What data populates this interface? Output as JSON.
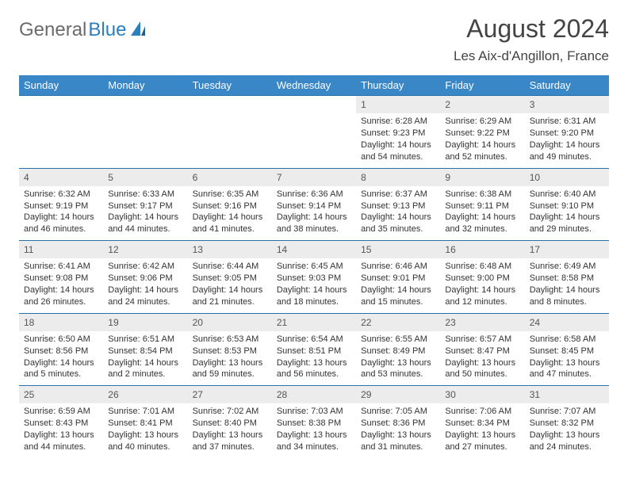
{
  "brand": {
    "part1": "General",
    "part2": "Blue"
  },
  "title": "August 2024",
  "location": "Les Aix-d'Angillon, France",
  "colors": {
    "header_bg": "#3a87c8",
    "header_text": "#ffffff",
    "daynum_bg": "#ececec",
    "rule": "#2a6fa8",
    "brand_gray": "#6b6b6b",
    "brand_blue": "#2a7fbf"
  },
  "weekdays": [
    "Sunday",
    "Monday",
    "Tuesday",
    "Wednesday",
    "Thursday",
    "Friday",
    "Saturday"
  ],
  "weeks": [
    [
      {
        "n": "",
        "lines": []
      },
      {
        "n": "",
        "lines": []
      },
      {
        "n": "",
        "lines": []
      },
      {
        "n": "",
        "lines": []
      },
      {
        "n": "1",
        "lines": [
          "Sunrise: 6:28 AM",
          "Sunset: 9:23 PM",
          "Daylight: 14 hours and 54 minutes."
        ]
      },
      {
        "n": "2",
        "lines": [
          "Sunrise: 6:29 AM",
          "Sunset: 9:22 PM",
          "Daylight: 14 hours and 52 minutes."
        ]
      },
      {
        "n": "3",
        "lines": [
          "Sunrise: 6:31 AM",
          "Sunset: 9:20 PM",
          "Daylight: 14 hours and 49 minutes."
        ]
      }
    ],
    [
      {
        "n": "4",
        "lines": [
          "Sunrise: 6:32 AM",
          "Sunset: 9:19 PM",
          "Daylight: 14 hours and 46 minutes."
        ]
      },
      {
        "n": "5",
        "lines": [
          "Sunrise: 6:33 AM",
          "Sunset: 9:17 PM",
          "Daylight: 14 hours and 44 minutes."
        ]
      },
      {
        "n": "6",
        "lines": [
          "Sunrise: 6:35 AM",
          "Sunset: 9:16 PM",
          "Daylight: 14 hours and 41 minutes."
        ]
      },
      {
        "n": "7",
        "lines": [
          "Sunrise: 6:36 AM",
          "Sunset: 9:14 PM",
          "Daylight: 14 hours and 38 minutes."
        ]
      },
      {
        "n": "8",
        "lines": [
          "Sunrise: 6:37 AM",
          "Sunset: 9:13 PM",
          "Daylight: 14 hours and 35 minutes."
        ]
      },
      {
        "n": "9",
        "lines": [
          "Sunrise: 6:38 AM",
          "Sunset: 9:11 PM",
          "Daylight: 14 hours and 32 minutes."
        ]
      },
      {
        "n": "10",
        "lines": [
          "Sunrise: 6:40 AM",
          "Sunset: 9:10 PM",
          "Daylight: 14 hours and 29 minutes."
        ]
      }
    ],
    [
      {
        "n": "11",
        "lines": [
          "Sunrise: 6:41 AM",
          "Sunset: 9:08 PM",
          "Daylight: 14 hours and 26 minutes."
        ]
      },
      {
        "n": "12",
        "lines": [
          "Sunrise: 6:42 AM",
          "Sunset: 9:06 PM",
          "Daylight: 14 hours and 24 minutes."
        ]
      },
      {
        "n": "13",
        "lines": [
          "Sunrise: 6:44 AM",
          "Sunset: 9:05 PM",
          "Daylight: 14 hours and 21 minutes."
        ]
      },
      {
        "n": "14",
        "lines": [
          "Sunrise: 6:45 AM",
          "Sunset: 9:03 PM",
          "Daylight: 14 hours and 18 minutes."
        ]
      },
      {
        "n": "15",
        "lines": [
          "Sunrise: 6:46 AM",
          "Sunset: 9:01 PM",
          "Daylight: 14 hours and 15 minutes."
        ]
      },
      {
        "n": "16",
        "lines": [
          "Sunrise: 6:48 AM",
          "Sunset: 9:00 PM",
          "Daylight: 14 hours and 12 minutes."
        ]
      },
      {
        "n": "17",
        "lines": [
          "Sunrise: 6:49 AM",
          "Sunset: 8:58 PM",
          "Daylight: 14 hours and 8 minutes."
        ]
      }
    ],
    [
      {
        "n": "18",
        "lines": [
          "Sunrise: 6:50 AM",
          "Sunset: 8:56 PM",
          "Daylight: 14 hours and 5 minutes."
        ]
      },
      {
        "n": "19",
        "lines": [
          "Sunrise: 6:51 AM",
          "Sunset: 8:54 PM",
          "Daylight: 14 hours and 2 minutes."
        ]
      },
      {
        "n": "20",
        "lines": [
          "Sunrise: 6:53 AM",
          "Sunset: 8:53 PM",
          "Daylight: 13 hours and 59 minutes."
        ]
      },
      {
        "n": "21",
        "lines": [
          "Sunrise: 6:54 AM",
          "Sunset: 8:51 PM",
          "Daylight: 13 hours and 56 minutes."
        ]
      },
      {
        "n": "22",
        "lines": [
          "Sunrise: 6:55 AM",
          "Sunset: 8:49 PM",
          "Daylight: 13 hours and 53 minutes."
        ]
      },
      {
        "n": "23",
        "lines": [
          "Sunrise: 6:57 AM",
          "Sunset: 8:47 PM",
          "Daylight: 13 hours and 50 minutes."
        ]
      },
      {
        "n": "24",
        "lines": [
          "Sunrise: 6:58 AM",
          "Sunset: 8:45 PM",
          "Daylight: 13 hours and 47 minutes."
        ]
      }
    ],
    [
      {
        "n": "25",
        "lines": [
          "Sunrise: 6:59 AM",
          "Sunset: 8:43 PM",
          "Daylight: 13 hours and 44 minutes."
        ]
      },
      {
        "n": "26",
        "lines": [
          "Sunrise: 7:01 AM",
          "Sunset: 8:41 PM",
          "Daylight: 13 hours and 40 minutes."
        ]
      },
      {
        "n": "27",
        "lines": [
          "Sunrise: 7:02 AM",
          "Sunset: 8:40 PM",
          "Daylight: 13 hours and 37 minutes."
        ]
      },
      {
        "n": "28",
        "lines": [
          "Sunrise: 7:03 AM",
          "Sunset: 8:38 PM",
          "Daylight: 13 hours and 34 minutes."
        ]
      },
      {
        "n": "29",
        "lines": [
          "Sunrise: 7:05 AM",
          "Sunset: 8:36 PM",
          "Daylight: 13 hours and 31 minutes."
        ]
      },
      {
        "n": "30",
        "lines": [
          "Sunrise: 7:06 AM",
          "Sunset: 8:34 PM",
          "Daylight: 13 hours and 27 minutes."
        ]
      },
      {
        "n": "31",
        "lines": [
          "Sunrise: 7:07 AM",
          "Sunset: 8:32 PM",
          "Daylight: 13 hours and 24 minutes."
        ]
      }
    ]
  ]
}
